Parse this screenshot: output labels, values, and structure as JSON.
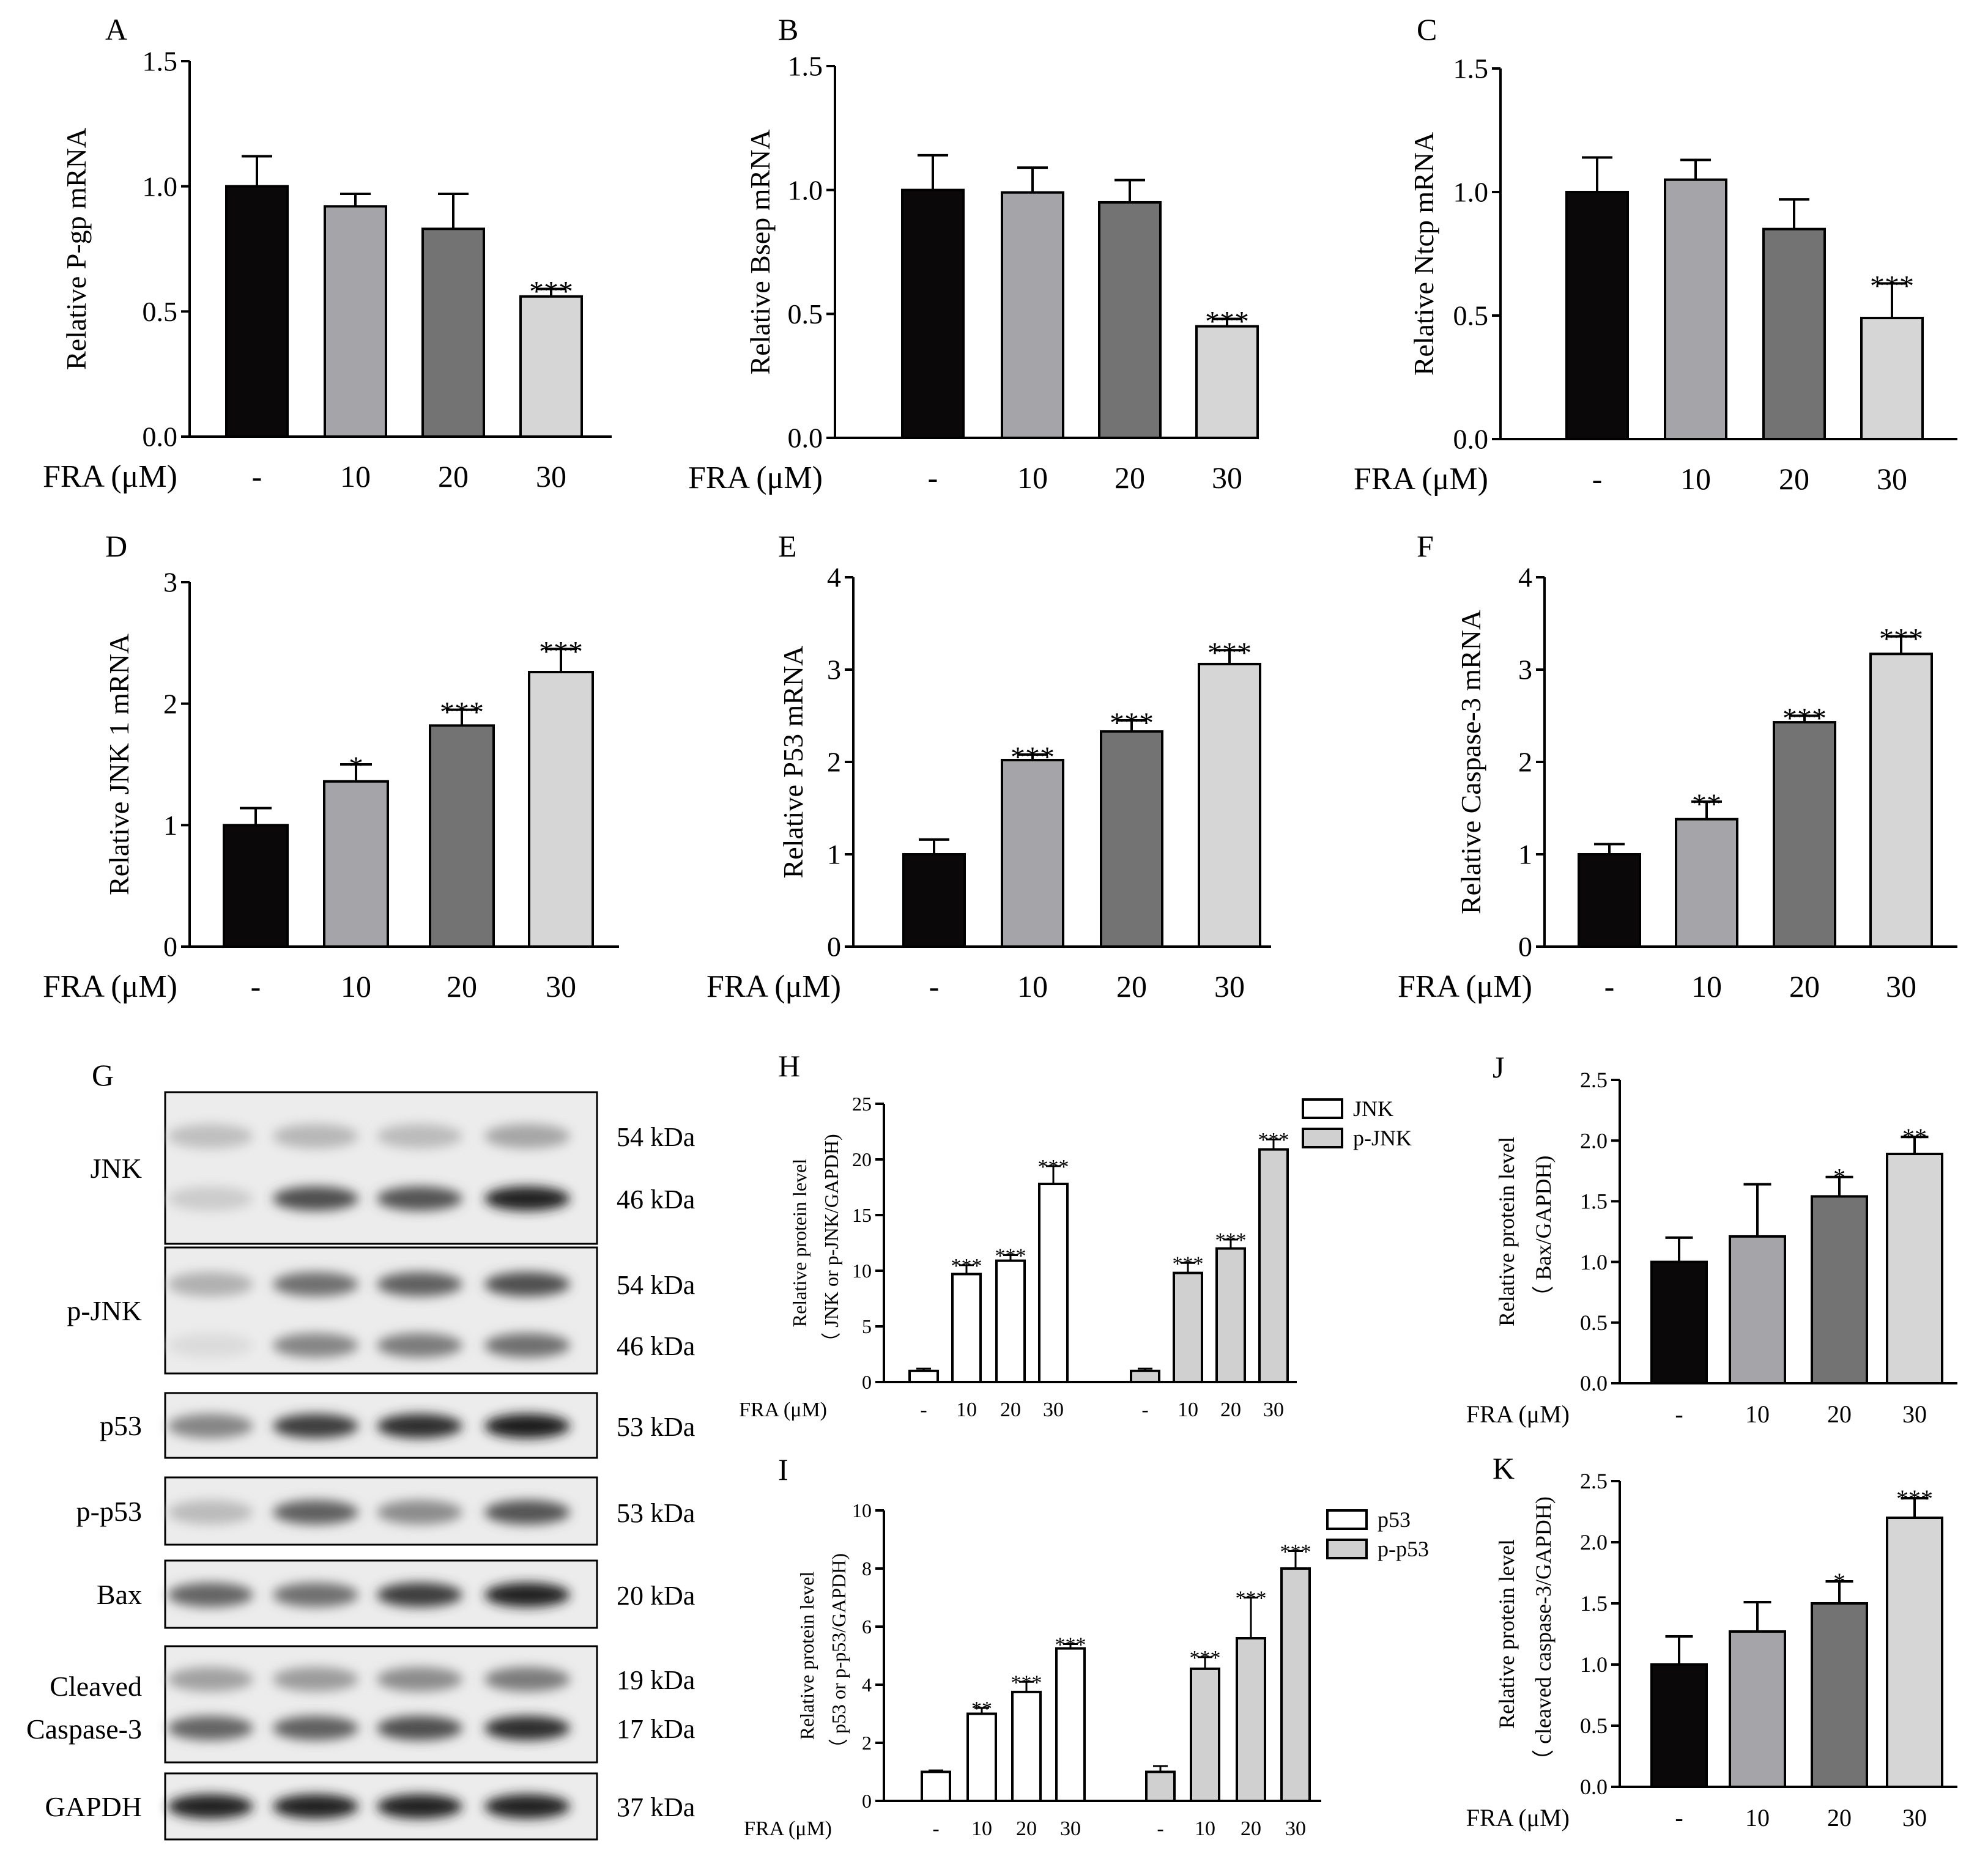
{
  "colors": {
    "c0": "#0a0808",
    "c10": "#a5a5a9",
    "c20": "#737373",
    "c30": "#d6d6d6",
    "open": "#ffffff",
    "phospho": "#d0d0d0",
    "axis": "#000000"
  },
  "chart_data": [
    {
      "panel": "A",
      "type": "bar",
      "ylabel": "Relative P-gp mRNA",
      "xlabel": "FRA (μM)",
      "categories": [
        "-",
        "10",
        "20",
        "30"
      ],
      "values": [
        1.0,
        0.92,
        0.83,
        0.56
      ],
      "errors": [
        0.12,
        0.05,
        0.14,
        0.03
      ],
      "significance": [
        "",
        "",
        "",
        "***"
      ],
      "yticks": [
        "0.0",
        "0.5",
        "1.0",
        "1.5"
      ],
      "ylim": [
        0,
        1.5
      ]
    },
    {
      "panel": "B",
      "type": "bar",
      "ylabel": "Relative Bsep mRNA",
      "xlabel": "FRA (μM)",
      "categories": [
        "-",
        "10",
        "20",
        "30"
      ],
      "values": [
        1.0,
        0.99,
        0.95,
        0.45
      ],
      "errors": [
        0.14,
        0.1,
        0.09,
        0.03
      ],
      "significance": [
        "",
        "",
        "",
        "***"
      ],
      "yticks": [
        "0.0",
        "0.5",
        "1.0",
        "1.5"
      ],
      "ylim": [
        0,
        1.5
      ]
    },
    {
      "panel": "C",
      "type": "bar",
      "ylabel": "Relative Ntcp mRNA",
      "xlabel": "FRA (μM)",
      "categories": [
        "-",
        "10",
        "20",
        "30"
      ],
      "values": [
        1.0,
        1.05,
        0.85,
        0.49
      ],
      "errors": [
        0.14,
        0.08,
        0.12,
        0.14
      ],
      "significance": [
        "",
        "",
        "",
        "***"
      ],
      "yticks": [
        "0.0",
        "0.5",
        "1.0",
        "1.5"
      ],
      "ylim": [
        0,
        1.5
      ]
    },
    {
      "panel": "D",
      "type": "bar",
      "ylabel": "Relative JNK 1 mRNA",
      "xlabel": "FRA (μM)",
      "categories": [
        "-",
        "10",
        "20",
        "30"
      ],
      "values": [
        1.0,
        1.36,
        1.82,
        2.26
      ],
      "errors": [
        0.14,
        0.14,
        0.13,
        0.19
      ],
      "significance": [
        "",
        "*",
        "***",
        "***"
      ],
      "yticks": [
        "0",
        "1",
        "2",
        "3"
      ],
      "ylim": [
        0,
        3
      ]
    },
    {
      "panel": "E",
      "type": "bar",
      "ylabel": "Relative P53 mRNA",
      "xlabel": "FRA (μM)",
      "categories": [
        "-",
        "10",
        "20",
        "30"
      ],
      "values": [
        1.0,
        2.02,
        2.33,
        3.06
      ],
      "errors": [
        0.16,
        0.06,
        0.12,
        0.15
      ],
      "significance": [
        "",
        "***",
        "***",
        "***"
      ],
      "yticks": [
        "0",
        "1",
        "2",
        "3",
        "4"
      ],
      "ylim": [
        0,
        4
      ]
    },
    {
      "panel": "F",
      "type": "bar",
      "ylabel": "Relative Caspase-3 mRNA",
      "xlabel": "FRA (μM)",
      "categories": [
        "-",
        "10",
        "20",
        "30"
      ],
      "values": [
        1.0,
        1.38,
        2.43,
        3.17
      ],
      "errors": [
        0.11,
        0.19,
        0.07,
        0.19
      ],
      "significance": [
        "",
        "**",
        "***",
        "***"
      ],
      "yticks": [
        "0",
        "1",
        "2",
        "3",
        "4"
      ],
      "ylim": [
        0,
        4
      ]
    },
    {
      "panel": "H",
      "type": "grouped-bar",
      "ylabel": "Relative protein level",
      "ylabel2": "（ JNK or p-JNK/GAPDH)",
      "xlabel": "FRA (μM)",
      "categories": [
        "-",
        "10",
        "20",
        "30"
      ],
      "series": [
        {
          "name": "JNK",
          "values": [
            1.0,
            9.7,
            10.9,
            17.8
          ],
          "errors": [
            0.2,
            0.8,
            0.5,
            1.6
          ],
          "significance": [
            "",
            "***",
            "***",
            "***"
          ]
        },
        {
          "name": "p-JNK",
          "values": [
            1.0,
            9.8,
            12.0,
            20.9
          ],
          "errors": [
            0.2,
            0.9,
            0.8,
            0.9
          ],
          "significance": [
            "",
            "***",
            "***",
            "***"
          ]
        }
      ],
      "yticks": [
        "0",
        "5",
        "10",
        "15",
        "20",
        "25"
      ],
      "ylim": [
        0,
        25
      ]
    },
    {
      "panel": "I",
      "type": "grouped-bar",
      "ylabel": "Relative protein level",
      "ylabel2": "（ p53 or p-p53/GAPDH)",
      "xlabel": "FRA (μM)",
      "categories": [
        "-",
        "10",
        "20",
        "30"
      ],
      "series": [
        {
          "name": "p53",
          "values": [
            1.0,
            3.0,
            3.75,
            5.25
          ],
          "errors": [
            0.05,
            0.2,
            0.35,
            0.15
          ],
          "significance": [
            "",
            "**",
            "***",
            "***"
          ]
        },
        {
          "name": "p-p53",
          "values": [
            1.0,
            4.55,
            5.6,
            8.0
          ],
          "errors": [
            0.2,
            0.4,
            1.4,
            0.6
          ],
          "significance": [
            "",
            "***",
            "***",
            "***"
          ]
        }
      ],
      "yticks": [
        "0",
        "2",
        "4",
        "6",
        "8",
        "10"
      ],
      "ylim": [
        0,
        10
      ]
    },
    {
      "panel": "J",
      "type": "bar",
      "ylabel": "Relative protein level",
      "ylabel2": "（ Bax/GAPDH)",
      "xlabel": "FRA (μM)",
      "categories": [
        "-",
        "10",
        "20",
        "30"
      ],
      "values": [
        1.0,
        1.21,
        1.54,
        1.89
      ],
      "errors": [
        0.2,
        0.43,
        0.16,
        0.14
      ],
      "significance": [
        "",
        "",
        "*",
        "**"
      ],
      "yticks": [
        "0.0",
        "0.5",
        "1.0",
        "1.5",
        "2.0",
        "2.5"
      ],
      "ylim": [
        0,
        2.5
      ]
    },
    {
      "panel": "K",
      "type": "bar",
      "ylabel": "Relative protein level",
      "ylabel2": "（ cleaved caspase-3/GAPDH)",
      "xlabel": "FRA (μM)",
      "categories": [
        "-",
        "10",
        "20",
        "30"
      ],
      "values": [
        1.0,
        1.27,
        1.5,
        2.2
      ],
      "errors": [
        0.23,
        0.24,
        0.18,
        0.16
      ],
      "significance": [
        "",
        "",
        "*",
        "***"
      ],
      "yticks": [
        "0.0",
        "0.5",
        "1.0",
        "1.5",
        "2.0",
        "2.5"
      ],
      "ylim": [
        0,
        2.5
      ]
    }
  ],
  "western_blot": {
    "panel": "G",
    "bands": [
      {
        "label": "JNK",
        "sizes": [
          "54 kDa",
          "46 kDa"
        ]
      },
      {
        "label": "p-JNK",
        "sizes": [
          "54 kDa",
          "46 kDa"
        ]
      },
      {
        "label": "p53",
        "sizes": [
          "53 kDa"
        ]
      },
      {
        "label": "p-p53",
        "sizes": [
          "53 kDa"
        ]
      },
      {
        "label": "Bax",
        "sizes": [
          "20 kDa"
        ]
      },
      {
        "label": "Cleaved Caspase-3",
        "label_lines": [
          "Cleaved",
          "Caspase-3"
        ],
        "sizes": [
          "19 kDa",
          "17 kDa"
        ]
      },
      {
        "label": "GAPDH",
        "sizes": [
          "37 kDa"
        ]
      }
    ],
    "intensity": [
      [
        [
          0.18,
          0.22,
          0.2,
          0.3
        ],
        [
          0.12,
          0.7,
          0.68,
          0.92
        ]
      ],
      [
        [
          0.25,
          0.55,
          0.62,
          0.7
        ],
        [
          0.05,
          0.45,
          0.5,
          0.55
        ]
      ],
      [
        [
          0.45,
          0.78,
          0.86,
          0.95
        ]
      ],
      [
        [
          0.2,
          0.62,
          0.42,
          0.68
        ]
      ],
      [
        [
          0.6,
          0.55,
          0.78,
          0.92
        ]
      ],
      [
        [
          0.32,
          0.35,
          0.42,
          0.5
        ],
        [
          0.6,
          0.62,
          0.7,
          0.85
        ]
      ],
      [
        [
          0.92,
          0.92,
          0.92,
          0.92
        ]
      ]
    ]
  }
}
